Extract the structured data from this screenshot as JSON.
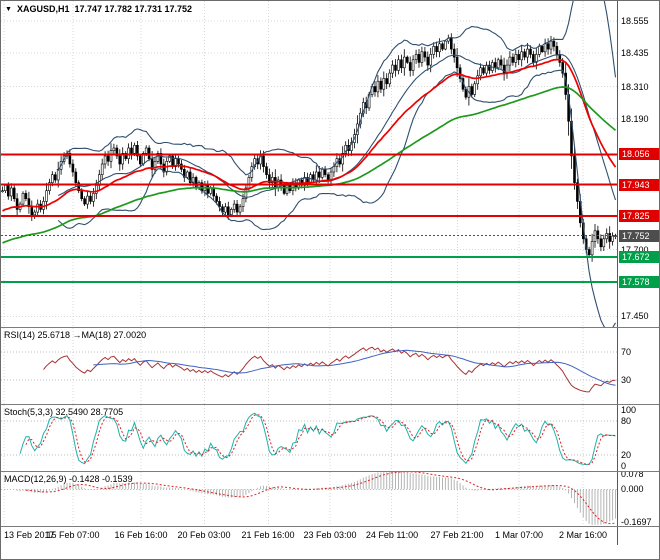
{
  "header": {
    "dropdown_icon": "▼",
    "symbol": "XAGUSD,H1",
    "ohlc": "17.747 17.782 17.731 17.752"
  },
  "colors": {
    "background": "#ffffff",
    "grid": "#d8d8d8",
    "panel_level": "#bdbdbd",
    "separator": "#7c7c7c",
    "candle": "#000000",
    "candle_up_fill": "#ffffff",
    "bollinger": "#2f4f6f",
    "ma_red": "#ee0000",
    "ma_green": "#1d9a1d",
    "level_red": "#e00000",
    "level_green": "#00a04a",
    "current_label": "#4d4d4d",
    "rsi": "#a83232",
    "rsi_ma": "#3f62c4",
    "stoch": "#20b2aa",
    "stoch_signal": "#dd2222",
    "macd_hist": "#b4b4b4",
    "macd_signal": "#dd2222",
    "text": "#000000"
  },
  "chart_data": {
    "type": "candlestick",
    "symbol": "XAGUSD",
    "timeframe": "H1",
    "price_axis": {
      "min": 17.41,
      "max": 18.63,
      "ticks": [
        {
          "v": 18.555,
          "label": "18.555"
        },
        {
          "v": 18.435,
          "label": "18.435"
        },
        {
          "v": 18.31,
          "label": "18.310"
        },
        {
          "v": 18.19,
          "label": "18.190"
        },
        {
          "v": 17.7,
          "label": "17.700"
        },
        {
          "v": 17.45,
          "label": "17.450"
        }
      ]
    },
    "time_axis": {
      "ticks": [
        {
          "pos": 0.005,
          "label": "13 Feb 2017"
        },
        {
          "pos": 0.117,
          "label": "15 Feb 07:00"
        },
        {
          "pos": 0.227,
          "label": "16 Feb 16:00"
        },
        {
          "pos": 0.33,
          "label": "20 Feb 03:00"
        },
        {
          "pos": 0.434,
          "label": "21 Feb 16:00"
        },
        {
          "pos": 0.534,
          "label": "23 Feb 03:00"
        },
        {
          "pos": 0.634,
          "label": "24 Feb 11:00"
        },
        {
          "pos": 0.741,
          "label": "27 Feb 21:00"
        },
        {
          "pos": 0.841,
          "label": "1 Mar 07:00"
        },
        {
          "pos": 0.945,
          "label": "2 Mar 16:00"
        }
      ]
    },
    "levels": [
      {
        "value": 18.056,
        "label": "18.056",
        "color": "#e00000",
        "name": "resistance-line-1"
      },
      {
        "value": 17.943,
        "label": "17.943",
        "color": "#e00000",
        "name": "resistance-line-2"
      },
      {
        "value": 17.825,
        "label": "17.825",
        "color": "#e00000",
        "name": "resistance-line-3"
      },
      {
        "value": 17.752,
        "label": "17.752",
        "color": "#4d4d4d",
        "style": "dotted",
        "name": "current-price-line"
      },
      {
        "value": 17.672,
        "label": "17.672",
        "color": "#00a04a",
        "name": "support-line-1"
      },
      {
        "value": 17.578,
        "label": "17.578",
        "color": "#00a04a",
        "name": "support-line-2"
      }
    ],
    "bollinger": {
      "period": 20,
      "deviation": 2
    },
    "ma_red": {
      "period": 34,
      "seed": 17.84
    },
    "ma_green": {
      "period": 90,
      "seed": 17.72
    },
    "closes": [
      17.92,
      17.94,
      17.9,
      17.93,
      17.89,
      17.85,
      17.87,
      17.91,
      17.89,
      17.86,
      17.83,
      17.84,
      17.87,
      17.85,
      17.88,
      17.92,
      17.95,
      17.98,
      17.96,
      18.0,
      18.03,
      18.05,
      18.06,
      18.02,
      17.99,
      17.95,
      17.92,
      17.89,
      17.87,
      17.9,
      17.88,
      17.91,
      17.94,
      17.98,
      18.02,
      18.05,
      18.03,
      18.07,
      18.08,
      18.05,
      18.02,
      18.06,
      18.04,
      18.08,
      18.06,
      18.09,
      18.05,
      18.02,
      18.06,
      18.08,
      18.04,
      18.0,
      18.03,
      18.06,
      18.02,
      17.99,
      18.03,
      18.05,
      18.01,
      18.04,
      18.02,
      18.0,
      17.97,
      17.99,
      17.95,
      17.97,
      17.93,
      17.95,
      17.92,
      17.94,
      17.91,
      17.93,
      17.9,
      17.88,
      17.86,
      17.84,
      17.86,
      17.83,
      17.85,
      17.87,
      17.84,
      17.86,
      17.89,
      17.93,
      17.97,
      18.01,
      18.04,
      18.02,
      18.05,
      18.01,
      17.98,
      17.95,
      17.97,
      17.93,
      17.96,
      17.94,
      17.91,
      17.94,
      17.92,
      17.95,
      17.93,
      17.96,
      17.94,
      17.97,
      17.95,
      17.98,
      17.96,
      17.99,
      17.97,
      18.0,
      17.98,
      17.96,
      17.99,
      18.01,
      18.04,
      18.02,
      18.06,
      18.09,
      18.07,
      18.1,
      18.13,
      18.17,
      18.21,
      18.25,
      18.23,
      18.28,
      18.31,
      18.29,
      18.33,
      18.3,
      18.34,
      18.32,
      18.36,
      18.39,
      18.37,
      18.41,
      18.38,
      18.42,
      18.4,
      18.37,
      18.41,
      18.43,
      18.4,
      18.44,
      18.42,
      18.39,
      18.43,
      18.46,
      18.44,
      18.47,
      18.45,
      18.48,
      18.49,
      18.45,
      18.42,
      18.38,
      18.34,
      18.3,
      18.27,
      18.31,
      18.28,
      18.32,
      18.35,
      18.38,
      18.36,
      18.39,
      18.37,
      18.4,
      18.38,
      18.41,
      18.39,
      18.36,
      18.39,
      18.42,
      18.4,
      18.43,
      18.41,
      18.44,
      18.42,
      18.45,
      18.43,
      18.4,
      18.43,
      18.46,
      18.44,
      18.47,
      18.45,
      18.48,
      18.46,
      18.43,
      18.4,
      18.36,
      18.28,
      18.18,
      18.05,
      17.95,
      17.88,
      17.8,
      17.74,
      17.7,
      17.68,
      17.73,
      17.77,
      17.74,
      17.71,
      17.74,
      17.76,
      17.73,
      17.75,
      17.752
    ],
    "indicators": [
      {
        "id": "rsi",
        "label": "RSI(14) 25.6718 →MA(18) 27.0020",
        "params": {
          "period": 14,
          "ma": 18
        },
        "scale": {
          "min": -5,
          "max": 105
        },
        "levels": [
          70,
          30
        ],
        "ticks": [
          {
            "v": 70,
            "label": "70"
          },
          {
            "v": 30,
            "label": "30"
          }
        ]
      },
      {
        "id": "stoch",
        "label": "Stoch(5,3,3) 32.5490 28.7705",
        "params": {
          "k": 5,
          "d": 3,
          "slowing": 3
        },
        "scale": {
          "min": -8,
          "max": 108
        },
        "levels": [
          80,
          20
        ],
        "ticks": [
          {
            "v": 100,
            "label": "100"
          },
          {
            "v": 80,
            "label": "80"
          },
          {
            "v": 20,
            "label": "20"
          },
          {
            "v": 0,
            "label": "0"
          }
        ]
      },
      {
        "id": "macd",
        "label": "MACD(12,26,9) -0.1428 -0.1539",
        "params": {
          "fast": 12,
          "slow": 26,
          "signal": 9
        },
        "scale": {
          "min": -0.19,
          "max": 0.09
        },
        "levels": [
          0
        ],
        "ticks": [
          {
            "v": 0.078,
            "label": "0.078"
          },
          {
            "v": 0,
            "label": "0.000"
          },
          {
            "v": -0.1697,
            "label": "-0.1697"
          }
        ]
      }
    ]
  }
}
